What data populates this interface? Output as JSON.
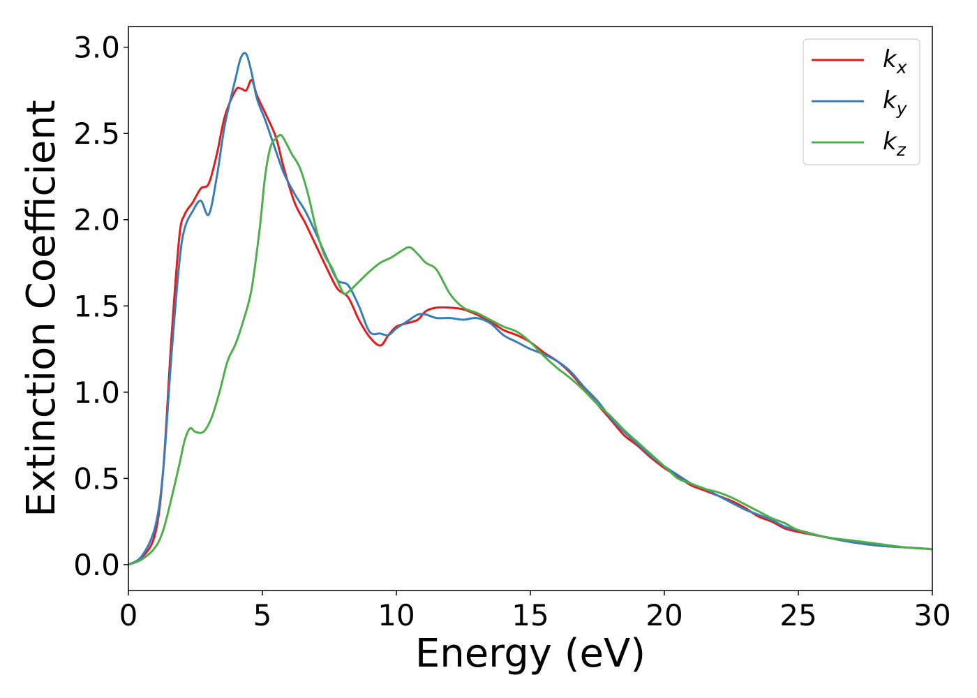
{
  "chart_data": {
    "type": "line",
    "title": "",
    "xlabel": "Energy (eV)",
    "ylabel": "Extinction Coefficient",
    "xlim": [
      0,
      30
    ],
    "ylim": [
      -0.15,
      3.12
    ],
    "xticks": [
      0,
      5,
      10,
      15,
      20,
      25,
      30
    ],
    "xtick_labels": [
      "0",
      "5",
      "10",
      "15",
      "20",
      "25",
      "30"
    ],
    "yticks": [
      0.0,
      0.5,
      1.0,
      1.5,
      2.0,
      2.5,
      3.0
    ],
    "ytick_labels": [
      "0.0",
      "0.5",
      "1.0",
      "1.5",
      "2.0",
      "2.5",
      "3.0"
    ],
    "grid": false,
    "legend": {
      "position": "top-right"
    },
    "series": [
      {
        "name": "k",
        "subscript": "x",
        "color": "#e41a1c",
        "x": [
          0,
          0.5,
          1.0,
          1.3,
          1.6,
          1.9,
          2.1,
          2.4,
          2.7,
          3.0,
          3.3,
          3.6,
          4.0,
          4.2,
          4.4,
          4.6,
          4.8,
          5.1,
          5.5,
          5.8,
          6.2,
          6.6,
          7.0,
          7.4,
          7.8,
          8.2,
          8.6,
          9.0,
          9.4,
          9.7,
          10.0,
          10.4,
          10.8,
          11.1,
          11.5,
          12.0,
          12.5,
          13.0,
          13.5,
          14.0,
          14.5,
          15.0,
          15.5,
          16.0,
          16.5,
          17.0,
          17.5,
          18.0,
          18.5,
          19.0,
          19.5,
          20.0,
          20.5,
          21.0,
          21.5,
          22.0,
          22.5,
          23.0,
          23.5,
          24.0,
          24.5,
          25.0,
          26.0,
          27.0,
          28.0,
          29.0,
          30.0
        ],
        "y": [
          0.0,
          0.04,
          0.18,
          0.55,
          1.3,
          1.9,
          2.03,
          2.1,
          2.18,
          2.21,
          2.38,
          2.6,
          2.75,
          2.76,
          2.75,
          2.81,
          2.72,
          2.62,
          2.48,
          2.3,
          2.1,
          1.98,
          1.85,
          1.72,
          1.6,
          1.55,
          1.42,
          1.32,
          1.27,
          1.33,
          1.38,
          1.4,
          1.42,
          1.47,
          1.49,
          1.49,
          1.48,
          1.45,
          1.41,
          1.36,
          1.33,
          1.29,
          1.23,
          1.18,
          1.11,
          1.02,
          0.93,
          0.84,
          0.75,
          0.69,
          0.62,
          0.56,
          0.51,
          0.46,
          0.43,
          0.4,
          0.37,
          0.33,
          0.28,
          0.25,
          0.21,
          0.19,
          0.16,
          0.13,
          0.11,
          0.1,
          0.09
        ]
      },
      {
        "name": "k",
        "subscript": "y",
        "color": "#377eb8",
        "x": [
          0,
          0.5,
          1.0,
          1.3,
          1.6,
          1.9,
          2.1,
          2.4,
          2.7,
          3.0,
          3.3,
          3.6,
          4.0,
          4.2,
          4.4,
          4.6,
          4.8,
          5.1,
          5.5,
          5.8,
          6.2,
          6.6,
          7.0,
          7.4,
          7.8,
          8.2,
          8.6,
          9.0,
          9.4,
          9.7,
          10.0,
          10.4,
          10.8,
          11.1,
          11.5,
          12.0,
          12.5,
          13.0,
          13.5,
          14.0,
          14.5,
          15.0,
          15.5,
          16.0,
          16.5,
          17.0,
          17.5,
          18.0,
          18.5,
          19.0,
          19.5,
          20.0,
          20.5,
          21.0,
          21.5,
          22.0,
          22.5,
          23.0,
          23.5,
          24.0,
          24.5,
          25.0,
          26.0,
          27.0,
          28.0,
          29.0,
          30.0
        ],
        "y": [
          0.0,
          0.05,
          0.22,
          0.55,
          1.2,
          1.75,
          1.95,
          2.05,
          2.11,
          2.03,
          2.25,
          2.55,
          2.82,
          2.94,
          2.96,
          2.85,
          2.7,
          2.58,
          2.4,
          2.27,
          2.15,
          2.05,
          1.92,
          1.78,
          1.65,
          1.62,
          1.5,
          1.35,
          1.34,
          1.33,
          1.37,
          1.41,
          1.45,
          1.45,
          1.43,
          1.43,
          1.42,
          1.43,
          1.4,
          1.33,
          1.29,
          1.25,
          1.22,
          1.18,
          1.12,
          1.03,
          0.95,
          0.85,
          0.77,
          0.7,
          0.63,
          0.57,
          0.52,
          0.47,
          0.44,
          0.4,
          0.36,
          0.32,
          0.29,
          0.26,
          0.22,
          0.2,
          0.16,
          0.13,
          0.11,
          0.1,
          0.09
        ]
      },
      {
        "name": "k",
        "subscript": "z",
        "color": "#4daf4a",
        "x": [
          0,
          0.5,
          1.0,
          1.3,
          1.6,
          1.9,
          2.1,
          2.3,
          2.5,
          2.8,
          3.1,
          3.4,
          3.7,
          4.0,
          4.3,
          4.6,
          4.9,
          5.1,
          5.3,
          5.5,
          5.7,
          5.9,
          6.1,
          6.4,
          6.7,
          7.0,
          7.3,
          7.6,
          8.0,
          8.2,
          8.6,
          9.0,
          9.4,
          9.8,
          10.2,
          10.5,
          10.8,
          11.1,
          11.5,
          12.0,
          12.5,
          13.0,
          13.5,
          14.0,
          14.5,
          15.0,
          15.5,
          16.0,
          16.5,
          17.0,
          17.5,
          18.0,
          18.5,
          19.0,
          19.5,
          20.0,
          20.5,
          21.0,
          21.5,
          22.0,
          22.5,
          23.0,
          23.5,
          24.0,
          24.5,
          25.0,
          26.0,
          27.0,
          28.0,
          29.0,
          30.0
        ],
        "y": [
          0.0,
          0.03,
          0.1,
          0.2,
          0.38,
          0.58,
          0.72,
          0.79,
          0.77,
          0.77,
          0.85,
          1.0,
          1.18,
          1.28,
          1.42,
          1.6,
          1.95,
          2.25,
          2.42,
          2.47,
          2.49,
          2.44,
          2.38,
          2.3,
          2.15,
          1.95,
          1.8,
          1.72,
          1.58,
          1.58,
          1.64,
          1.7,
          1.75,
          1.78,
          1.82,
          1.84,
          1.8,
          1.75,
          1.71,
          1.57,
          1.49,
          1.46,
          1.42,
          1.38,
          1.35,
          1.29,
          1.21,
          1.14,
          1.08,
          1.01,
          0.93,
          0.86,
          0.78,
          0.71,
          0.64,
          0.57,
          0.5,
          0.47,
          0.44,
          0.42,
          0.39,
          0.35,
          0.31,
          0.27,
          0.24,
          0.2,
          0.16,
          0.14,
          0.12,
          0.1,
          0.09
        ]
      }
    ]
  }
}
